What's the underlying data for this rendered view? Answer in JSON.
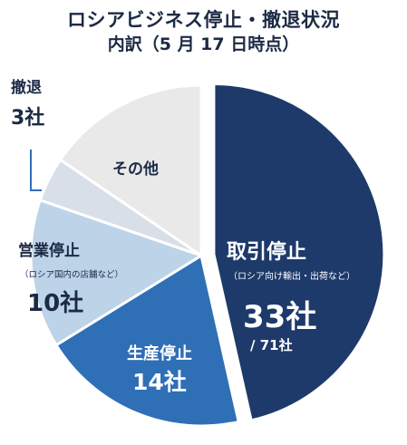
{
  "header": {
    "title_line1": "ロシアビジネス停止・撤退状況",
    "title_line2": "内訳（5 月 17 日時点）"
  },
  "chart_data": {
    "type": "pie",
    "title": "ロシアビジネス停止・撤退状況",
    "subtitle": "内訳（5 月 17 日時点）",
    "total_text": "/ 71社",
    "categories": [
      "取引停止",
      "生産停止",
      "営業停止",
      "撤退",
      "その他"
    ],
    "values": [
      33,
      14,
      10,
      3,
      11
    ],
    "notes": {
      "取引停止": "（ロシア向け輸出・出荷など）",
      "営業停止": "（ロシア国内の店舗など）"
    },
    "value_labels": [
      "33社",
      "14社",
      "10社",
      "3社",
      ""
    ],
    "colors": [
      "#1e3a6a",
      "#2f6fb6",
      "#bcd3e8",
      "#d8dfe9",
      "#e9e9e9"
    ],
    "exploded": "取引停止"
  }
}
